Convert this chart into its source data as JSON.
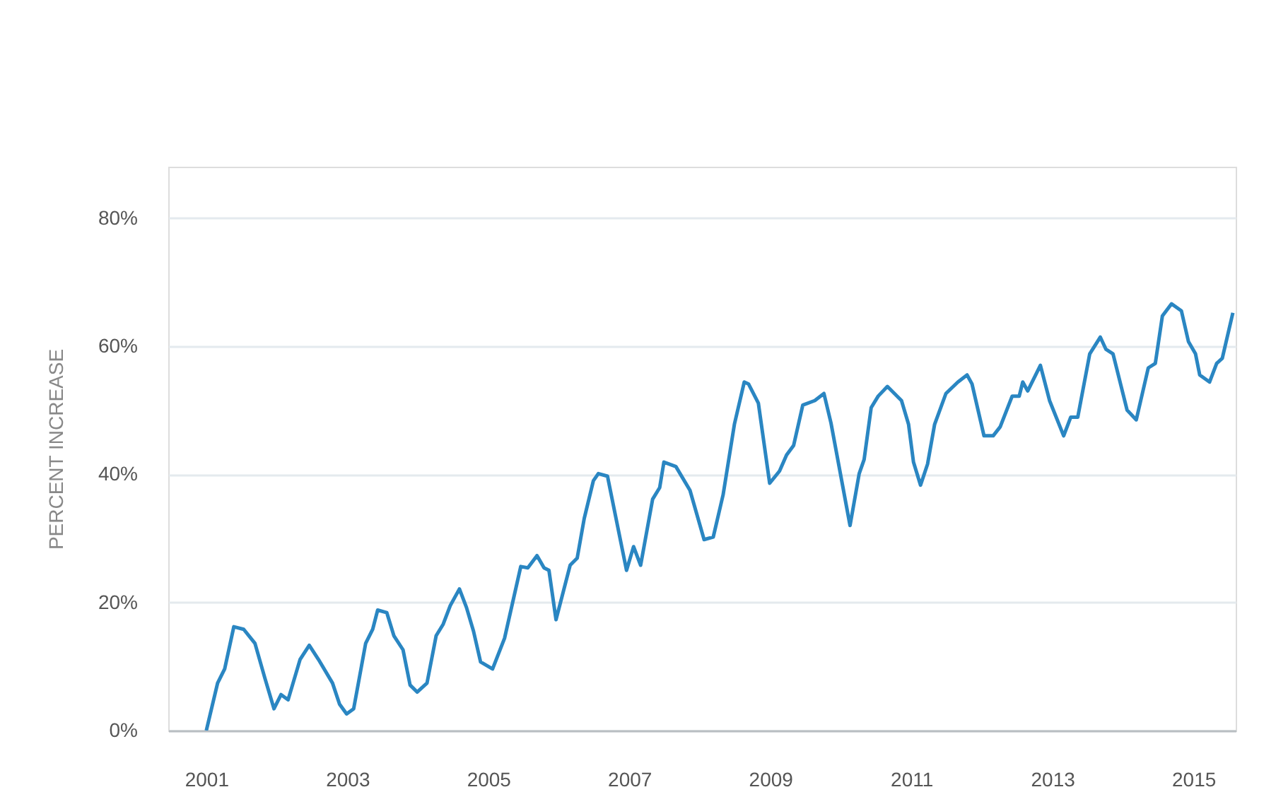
{
  "chart_data": {
    "type": "line",
    "ylabel": "PERCENT INCREASE",
    "x": [
      2001.0,
      2001.16,
      2001.26,
      2001.39,
      2001.53,
      2001.69,
      2001.83,
      2001.96,
      2002.06,
      2002.16,
      2002.33,
      2002.46,
      2002.59,
      2002.79,
      2002.89,
      2002.99,
      2003.09,
      2003.26,
      2003.36,
      2003.43,
      2003.56,
      2003.66,
      2003.79,
      2003.89,
      2003.99,
      2004.13,
      2004.26,
      2004.36,
      2004.46,
      2004.59,
      2004.69,
      2004.79,
      2004.89,
      2005.06,
      2005.23,
      2005.46,
      2005.56,
      2005.69,
      2005.79,
      2005.86,
      2005.96,
      2006.16,
      2006.26,
      2006.36,
      2006.49,
      2006.56,
      2006.69,
      2006.96,
      2007.06,
      2007.16,
      2007.33,
      2007.43,
      2007.49,
      2007.66,
      2007.86,
      2008.06,
      2008.19,
      2008.33,
      2008.49,
      2008.63,
      2008.69,
      2008.83,
      2008.99,
      2009.13,
      2009.23,
      2009.33,
      2009.46,
      2009.63,
      2009.76,
      2009.86,
      2010.13,
      2010.26,
      2010.33,
      2010.43,
      2010.53,
      2010.66,
      2010.86,
      2010.96,
      2011.03,
      2011.13,
      2011.23,
      2011.33,
      2011.49,
      2011.66,
      2011.79,
      2011.86,
      2012.03,
      2012.16,
      2012.26,
      2012.43,
      2012.53,
      2012.58,
      2012.65,
      2012.83,
      2012.96,
      2013.16,
      2013.26,
      2013.36,
      2013.53,
      2013.68,
      2013.76,
      2013.86,
      2014.06,
      2014.19,
      2014.36,
      2014.46,
      2014.56,
      2014.69,
      2014.83,
      2014.93,
      2015.03,
      2015.09,
      2015.23,
      2015.33,
      2015.41,
      2015.56
    ],
    "series": [
      {
        "color": "#2a86c2",
        "values": [
          0,
          7.4,
          9.6,
          16.2,
          15.8,
          13.6,
          8.2,
          3.4,
          5.6,
          4.8,
          11.1,
          13.3,
          11.1,
          7.4,
          4.1,
          2.6,
          3.4,
          13.6,
          15.8,
          18.8,
          18.4,
          14.8,
          12.6,
          7.1,
          6.0,
          7.4,
          14.8,
          16.6,
          19.5,
          22.1,
          19.2,
          15.5,
          10.7,
          9.6,
          14.4,
          25.6,
          25.4,
          27.3,
          25.4,
          25.0,
          17.3,
          25.8,
          26.9,
          33.1,
          39.0,
          40.1,
          39.7,
          25.0,
          28.7,
          25.8,
          36.1,
          37.9,
          41.9,
          41.2,
          37.5,
          29.8,
          30.2,
          36.8,
          47.8,
          54.4,
          54.1,
          51.1,
          38.6,
          40.5,
          43.0,
          44.5,
          50.8,
          51.5,
          52.6,
          48.0,
          32.0,
          40.1,
          42.3,
          50.4,
          52.2,
          53.7,
          51.5,
          47.8,
          41.9,
          38.3,
          41.6,
          47.8,
          52.6,
          54.4,
          55.5,
          54.1,
          46.0,
          46.0,
          47.4,
          52.2,
          52.2,
          54.4,
          53.0,
          57.0,
          51.5,
          46.0,
          48.9,
          48.9,
          58.8,
          61.4,
          59.5,
          58.8,
          50.0,
          48.5,
          56.6,
          57.3,
          64.7,
          66.6,
          65.5,
          60.7,
          58.8,
          55.5,
          54.4,
          57.3,
          58.1,
          65.2
        ]
      }
    ],
    "xlim": [
      2000.46,
      2015.6
    ],
    "xticks": [
      2001,
      2003,
      2005,
      2007,
      2009,
      2011,
      2013,
      2015
    ],
    "ylim": [
      0,
      88
    ],
    "yticks": [
      {
        "value": 0,
        "label": "0%"
      },
      {
        "value": 20,
        "label": "20%"
      },
      {
        "value": 40,
        "label": "40%"
      },
      {
        "value": 60,
        "label": "60%"
      },
      {
        "value": 80,
        "label": "80%"
      }
    ],
    "grid": "y",
    "marker": "none",
    "line_style": "solid"
  }
}
